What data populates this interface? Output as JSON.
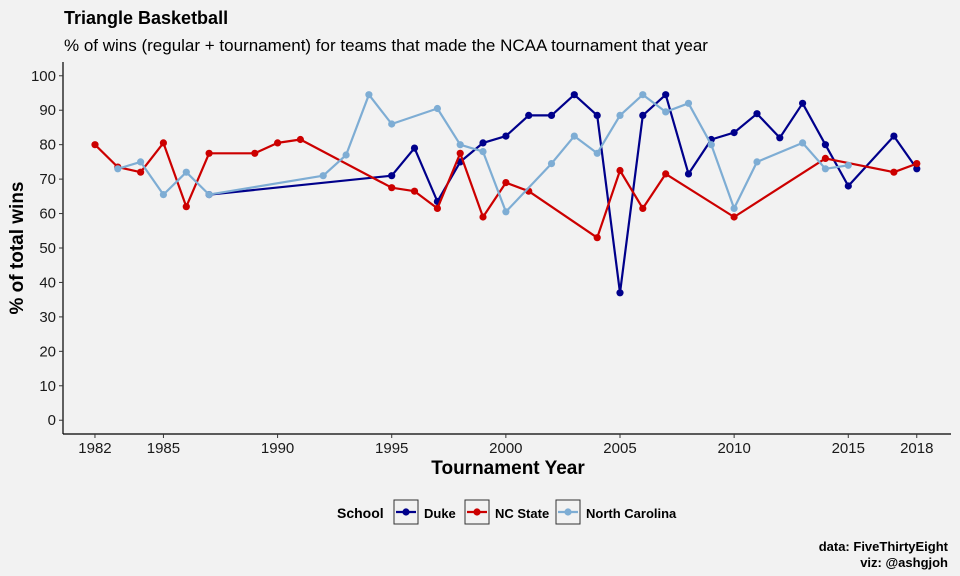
{
  "chart_data": {
    "type": "line",
    "title": "Triangle Basketball",
    "subtitle": "% of wins (regular + tournament) for teams that made the NCAA tournament that year",
    "xlabel": "Tournament Year",
    "ylabel": "% of total wins",
    "xlim": [
      1980.6,
      2019.5
    ],
    "ylim": [
      -4,
      104
    ],
    "x_ticks": [
      1982,
      1985,
      1990,
      1995,
      2000,
      2005,
      2010,
      2015,
      2018
    ],
    "y_ticks": [
      0,
      10,
      20,
      30,
      40,
      50,
      60,
      70,
      80,
      90,
      100
    ],
    "grid": false,
    "legend": {
      "title": "School",
      "position": "bottom"
    },
    "series": [
      {
        "name": "Duke",
        "color": "#00008b",
        "points": [
          [
            1987,
            65.5
          ],
          [
            1995,
            71
          ],
          [
            1996,
            79
          ],
          [
            1997,
            63.5
          ],
          [
            1998,
            75
          ],
          [
            1999,
            80.5
          ],
          [
            2000,
            82.5
          ],
          [
            2001,
            88.5
          ],
          [
            2002,
            88.5
          ],
          [
            2003,
            94.5
          ],
          [
            2004,
            88.5
          ],
          [
            2005,
            37
          ],
          [
            2006,
            88.5
          ],
          [
            2007,
            94.5
          ],
          [
            2008,
            71.5
          ],
          [
            2009,
            81.5
          ],
          [
            2010,
            83.5
          ],
          [
            2011,
            89
          ],
          [
            2012,
            82
          ],
          [
            2013,
            92
          ],
          [
            2014,
            80
          ],
          [
            2015,
            68
          ],
          [
            2017,
            82.5
          ],
          [
            2018,
            73
          ]
        ]
      },
      {
        "name": "NC State",
        "color": "#cc0000",
        "points": [
          [
            1982,
            80
          ],
          [
            1983,
            73.5
          ],
          [
            1984,
            72
          ],
          [
            1985,
            80.5
          ],
          [
            1986,
            62
          ],
          [
            1987,
            77.5
          ],
          [
            1989,
            77.5
          ],
          [
            1990,
            80.5
          ],
          [
            1991,
            81.5
          ],
          [
            1995,
            67.5
          ],
          [
            1996,
            66.5
          ],
          [
            1997,
            61.5
          ],
          [
            1998,
            77.5
          ],
          [
            1999,
            59
          ],
          [
            2000,
            69
          ],
          [
            2001,
            66.5
          ],
          [
            2004,
            53
          ],
          [
            2005,
            72.5
          ],
          [
            2006,
            61.5
          ],
          [
            2007,
            71.5
          ],
          [
            2010,
            59
          ],
          [
            2014,
            76
          ],
          [
            2017,
            72
          ],
          [
            2018,
            74.5
          ]
        ]
      },
      {
        "name": "North Carolina",
        "color": "#7eadd4",
        "points": [
          [
            1983,
            73
          ],
          [
            1984,
            75
          ],
          [
            1985,
            65.5
          ],
          [
            1986,
            72
          ],
          [
            1987,
            65.5
          ],
          [
            1992,
            71
          ],
          [
            1993,
            77
          ],
          [
            1994,
            94.5
          ],
          [
            1995,
            86
          ],
          [
            1997,
            90.5
          ],
          [
            1998,
            80
          ],
          [
            1999,
            78
          ],
          [
            2000,
            60.5
          ],
          [
            2002,
            74.5
          ],
          [
            2003,
            82.5
          ],
          [
            2004,
            77.5
          ],
          [
            2005,
            88.5
          ],
          [
            2006,
            94.5
          ],
          [
            2007,
            89.5
          ],
          [
            2008,
            92
          ],
          [
            2009,
            80
          ],
          [
            2010,
            61.5
          ],
          [
            2011,
            75
          ],
          [
            2013,
            80.5
          ],
          [
            2014,
            73
          ],
          [
            2015,
            74
          ]
        ]
      }
    ],
    "caption": [
      "data: FiveThirtyEight",
      "viz: @ashgjoh"
    ]
  }
}
